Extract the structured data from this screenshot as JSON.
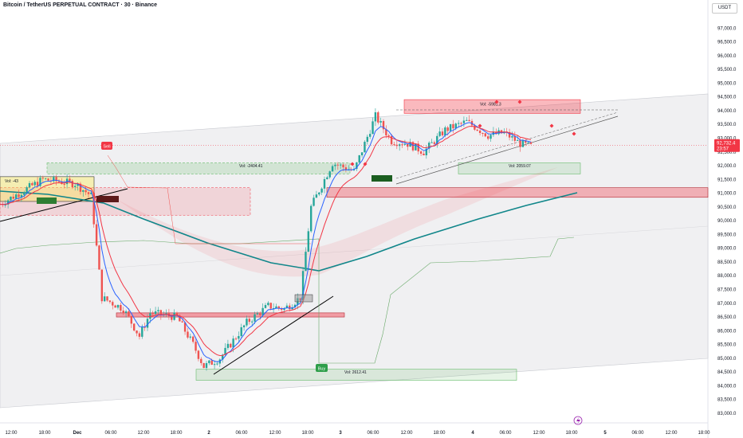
{
  "title": "Bitcoin / TetherUS PERPETUAL CONTRACT · 30 · Binance",
  "currency": "USDT",
  "colors": {
    "up": "#26a69a",
    "down": "#ef5350",
    "ema_fast": "#2962ff",
    "ema_slow": "#f23645",
    "vwap": "#089981",
    "channel": "#d1d4dc"
  },
  "price_badge": {
    "price": "92,732.4",
    "countdown": "23:57"
  },
  "annotations": {
    "sell": "Sell",
    "buy": "Buy",
    "vol_top": "Vol: -5981.3",
    "vol_left": "Vol: -2404.41",
    "vol_right": "Vol: 2059.07",
    "vol_bottom": "Vol: 2612.41",
    "vol_small": "Vol: -43"
  },
  "chart_data": {
    "type": "candlestick",
    "title": "Bitcoin / TetherUS PERPETUAL CONTRACT · 30 · Binance",
    "ylim": [
      83000,
      97500
    ],
    "y_ticks": [
      "97,000.0",
      "96,500.0",
      "96,000.0",
      "95,500.0",
      "95,000.0",
      "94,500.0",
      "94,000.0",
      "93,500.0",
      "93,000.0",
      "92,500.0",
      "92,000.0",
      "91,500.0",
      "91,000.0",
      "90,500.0",
      "90,000.0",
      "89,500.0",
      "89,000.0",
      "88,500.0",
      "88,000.0",
      "87,500.0",
      "87,000.0",
      "86,500.0",
      "86,000.0",
      "85,500.0",
      "85,000.0",
      "84,500.0",
      "84,000.0",
      "83,500.0",
      "83,000.0"
    ],
    "x_ticks": [
      "12:00",
      "18:00",
      "Dec",
      "06:00",
      "12:00",
      "18:00",
      "2",
      "06:00",
      "12:00",
      "18:00",
      "3",
      "06:00",
      "12:00",
      "18:00",
      "4",
      "06:00",
      "12:00",
      "18:00",
      "5",
      "06:00",
      "12:00",
      "18:00"
    ],
    "price_path": [
      {
        "t": 0,
        "p": 90600
      },
      {
        "t": 8,
        "p": 91500
      },
      {
        "t": 14,
        "p": 91350
      },
      {
        "t": 17,
        "p": 90900
      },
      {
        "t": 19,
        "p": 87200
      },
      {
        "t": 23,
        "p": 86800
      },
      {
        "t": 26,
        "p": 85800
      },
      {
        "t": 28,
        "p": 86650
      },
      {
        "t": 33,
        "p": 86500
      },
      {
        "t": 36,
        "p": 85500
      },
      {
        "t": 38,
        "p": 84700
      },
      {
        "t": 41,
        "p": 85000
      },
      {
        "t": 46,
        "p": 86300
      },
      {
        "t": 50,
        "p": 86900
      },
      {
        "t": 53,
        "p": 86800
      },
      {
        "t": 56,
        "p": 87200
      },
      {
        "t": 58,
        "p": 90500
      },
      {
        "t": 62,
        "p": 92100
      },
      {
        "t": 66,
        "p": 91800
      },
      {
        "t": 70,
        "p": 93800
      },
      {
        "t": 73,
        "p": 92900
      },
      {
        "t": 76,
        "p": 92800
      },
      {
        "t": 79,
        "p": 92500
      },
      {
        "t": 83,
        "p": 93300
      },
      {
        "t": 87,
        "p": 93600
      },
      {
        "t": 91,
        "p": 93100
      },
      {
        "t": 94,
        "p": 93200
      },
      {
        "t": 97,
        "p": 92800
      },
      {
        "t": 99,
        "p": 92700
      }
    ],
    "current_price": 92732.4,
    "zones": [
      {
        "kind": "supply",
        "ylo": 93900,
        "yhi": 94400
      },
      {
        "kind": "resistance",
        "ylo": 90900,
        "yhi": 91200
      },
      {
        "kind": "support",
        "ylo": 86500,
        "yhi": 86650
      }
    ],
    "grid": false,
    "legend": "none"
  }
}
